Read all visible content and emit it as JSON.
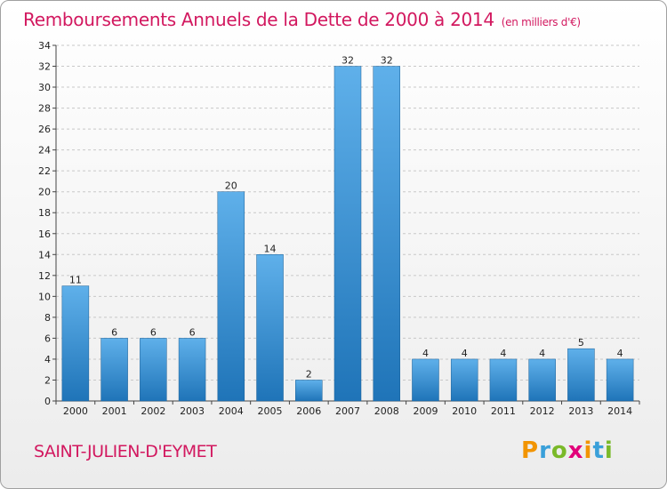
{
  "header": {
    "title": "Remboursements Annuels de la Dette de 2000 à 2014",
    "unit": "(en milliers d'€)"
  },
  "footer": {
    "commune": "SAINT-JULIEN-D'EYMET",
    "logo_text": "Proxiti"
  },
  "colors": {
    "title": "#d2185f",
    "bar_light": "#5fb0ea",
    "bar_dark": "#1f74b8",
    "grid": "#c8c8c8"
  },
  "chart_data": {
    "type": "bar",
    "title": "Remboursements Annuels de la Dette de 2000 à 2014",
    "xlabel": "",
    "ylabel": "",
    "categories": [
      "2000",
      "2001",
      "2002",
      "2003",
      "2004",
      "2005",
      "2006",
      "2007",
      "2008",
      "2009",
      "2010",
      "2011",
      "2012",
      "2013",
      "2014"
    ],
    "values": [
      11,
      6,
      6,
      6,
      20,
      14,
      2,
      32,
      32,
      4,
      4,
      4,
      4,
      5,
      4
    ],
    "ylim": [
      0,
      34
    ],
    "yticks": [
      0,
      2,
      4,
      6,
      8,
      10,
      12,
      14,
      16,
      18,
      20,
      22,
      24,
      26,
      28,
      30,
      32,
      34
    ],
    "grid": "horizontal-dashed",
    "legend": "none"
  }
}
